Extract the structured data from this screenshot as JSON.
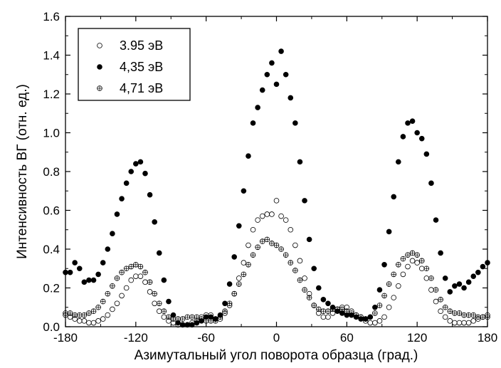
{
  "chart_data": {
    "type": "scatter",
    "xlabel": "Азимутальный угол поворота образца (град.)",
    "ylabel": "Интенсивность ВГ (отн. ед.)",
    "xlim": [
      -180,
      180
    ],
    "ylim": [
      0,
      1.6
    ],
    "x_ticks": [
      -180,
      -120,
      -60,
      0,
      60,
      120,
      180
    ],
    "y_ticks": [
      0.0,
      0.2,
      0.4,
      0.6,
      0.8,
      1.0,
      1.2,
      1.4,
      1.6
    ],
    "x_tick_labels": [
      "-180",
      "-120",
      "-60",
      "0",
      "60",
      "120",
      "180"
    ],
    "y_tick_labels": [
      "0.0",
      "0.2",
      "0.4",
      "0.6",
      "0.8",
      "1.0",
      "1.2",
      "1.4",
      "1.6"
    ],
    "legend_position": "top-left",
    "grid": false,
    "series": [
      {
        "name": "3.95 эВ",
        "marker": "open-circle",
        "color": "#000000",
        "x": [
          -180,
          -176,
          -172,
          -168,
          -164,
          -160,
          -156,
          -152,
          -148,
          -144,
          -140,
          -136,
          -132,
          -128,
          -124,
          -120,
          -116,
          -112,
          -108,
          -104,
          -100,
          -96,
          -92,
          -88,
          -84,
          -80,
          -76,
          -72,
          -68,
          -64,
          -60,
          -56,
          -52,
          -48,
          -44,
          -40,
          -36,
          -32,
          -28,
          -24,
          -20,
          -16,
          -12,
          -8,
          -4,
          0,
          4,
          8,
          12,
          16,
          20,
          24,
          28,
          32,
          36,
          40,
          44,
          48,
          52,
          56,
          60,
          64,
          68,
          72,
          76,
          80,
          84,
          88,
          92,
          96,
          100,
          104,
          108,
          112,
          116,
          120,
          124,
          128,
          132,
          136,
          140,
          144,
          148,
          152,
          156,
          160,
          164,
          168,
          172,
          176,
          180
        ],
        "y": [
          0.06,
          0.05,
          0.04,
          0.03,
          0.03,
          0.02,
          0.02,
          0.03,
          0.04,
          0.06,
          0.09,
          0.12,
          0.16,
          0.2,
          0.24,
          0.26,
          0.26,
          0.23,
          0.18,
          0.12,
          0.08,
          0.05,
          0.03,
          0.02,
          0.01,
          0.01,
          0.01,
          0.02,
          0.03,
          0.05,
          0.06,
          0.06,
          0.04,
          0.04,
          0.07,
          0.11,
          0.17,
          0.25,
          0.33,
          0.42,
          0.5,
          0.55,
          0.57,
          0.58,
          0.58,
          0.65,
          0.57,
          0.55,
          0.5,
          0.42,
          0.34,
          0.25,
          0.17,
          0.11,
          0.07,
          0.05,
          0.05,
          0.07,
          0.09,
          0.1,
          0.1,
          0.08,
          0.06,
          0.05,
          0.03,
          0.02,
          0.02,
          0.03,
          0.05,
          0.1,
          0.15,
          0.21,
          0.27,
          0.31,
          0.34,
          0.33,
          0.3,
          0.25,
          0.19,
          0.13,
          0.08,
          0.05,
          0.03,
          0.02,
          0.02,
          0.02,
          0.02,
          0.03,
          0.04,
          0.05,
          0.06
        ]
      },
      {
        "name": "4,35 эВ",
        "marker": "filled-circle",
        "color": "#000000",
        "x": [
          -180,
          -176,
          -172,
          -168,
          -164,
          -160,
          -156,
          -152,
          -148,
          -144,
          -140,
          -136,
          -132,
          -128,
          -124,
          -120,
          -116,
          -112,
          -108,
          -104,
          -100,
          -96,
          -92,
          -88,
          -84,
          -80,
          -76,
          -72,
          -68,
          -64,
          -60,
          -56,
          -52,
          -48,
          -44,
          -40,
          -36,
          -32,
          -28,
          -24,
          -20,
          -16,
          -12,
          -8,
          -4,
          0,
          4,
          8,
          12,
          16,
          20,
          24,
          28,
          32,
          36,
          40,
          44,
          48,
          52,
          56,
          60,
          64,
          68,
          72,
          76,
          80,
          84,
          88,
          92,
          96,
          100,
          104,
          108,
          112,
          116,
          120,
          124,
          128,
          132,
          136,
          140,
          144,
          148,
          152,
          156,
          160,
          164,
          168,
          172,
          176,
          180
        ],
        "y": [
          0.28,
          0.28,
          0.33,
          0.3,
          0.23,
          0.24,
          0.24,
          0.27,
          0.33,
          0.4,
          0.48,
          0.58,
          0.66,
          0.74,
          0.8,
          0.84,
          0.85,
          0.79,
          0.68,
          0.54,
          0.38,
          0.24,
          0.13,
          0.06,
          0.02,
          0.01,
          0.01,
          0.01,
          0.02,
          0.03,
          0.05,
          0.05,
          0.04,
          0.06,
          0.12,
          0.22,
          0.36,
          0.52,
          0.7,
          0.88,
          1.05,
          1.13,
          1.22,
          1.3,
          1.36,
          1.25,
          1.42,
          1.3,
          1.18,
          1.05,
          0.85,
          0.65,
          0.45,
          0.3,
          0.2,
          0.14,
          0.12,
          0.1,
          0.08,
          0.07,
          0.06,
          0.06,
          0.05,
          0.04,
          0.04,
          0.05,
          0.1,
          0.19,
          0.32,
          0.49,
          0.67,
          0.85,
          0.98,
          1.05,
          1.06,
          1.0,
          0.97,
          0.89,
          0.74,
          0.55,
          0.38,
          0.25,
          0.18,
          0.21,
          0.22,
          0.2,
          0.23,
          0.26,
          0.28,
          0.31,
          0.33
        ]
      },
      {
        "name": "4,71 эВ",
        "marker": "crossed-circle",
        "color": "#000000",
        "x": [
          -180,
          -176,
          -172,
          -168,
          -164,
          -160,
          -156,
          -152,
          -148,
          -144,
          -140,
          -136,
          -132,
          -128,
          -124,
          -120,
          -116,
          -112,
          -108,
          -104,
          -100,
          -96,
          -92,
          -88,
          -84,
          -80,
          -76,
          -72,
          -68,
          -64,
          -60,
          -56,
          -52,
          -48,
          -44,
          -40,
          -36,
          -32,
          -28,
          -24,
          -20,
          -16,
          -12,
          -8,
          -4,
          0,
          4,
          8,
          12,
          16,
          20,
          24,
          28,
          32,
          36,
          40,
          44,
          48,
          52,
          56,
          60,
          64,
          68,
          72,
          76,
          80,
          84,
          88,
          92,
          96,
          100,
          104,
          108,
          112,
          116,
          120,
          124,
          128,
          132,
          136,
          140,
          144,
          148,
          152,
          156,
          160,
          164,
          168,
          172,
          176,
          180
        ],
        "y": [
          0.07,
          0.07,
          0.06,
          0.06,
          0.06,
          0.07,
          0.08,
          0.1,
          0.13,
          0.17,
          0.21,
          0.25,
          0.28,
          0.3,
          0.31,
          0.32,
          0.31,
          0.28,
          0.23,
          0.17,
          0.12,
          0.08,
          0.05,
          0.04,
          0.04,
          0.04,
          0.05,
          0.05,
          0.05,
          0.04,
          0.03,
          0.03,
          0.03,
          0.05,
          0.08,
          0.12,
          0.17,
          0.22,
          0.27,
          0.32,
          0.37,
          0.41,
          0.44,
          0.45,
          0.43,
          0.42,
          0.4,
          0.37,
          0.33,
          0.29,
          0.24,
          0.19,
          0.15,
          0.11,
          0.09,
          0.08,
          0.08,
          0.09,
          0.09,
          0.09,
          0.08,
          0.07,
          0.06,
          0.05,
          0.04,
          0.05,
          0.07,
          0.11,
          0.16,
          0.22,
          0.27,
          0.32,
          0.35,
          0.37,
          0.38,
          0.37,
          0.34,
          0.3,
          0.25,
          0.19,
          0.14,
          0.1,
          0.08,
          0.07,
          0.07,
          0.06,
          0.06,
          0.06,
          0.05,
          0.05,
          0.05
        ]
      }
    ]
  }
}
